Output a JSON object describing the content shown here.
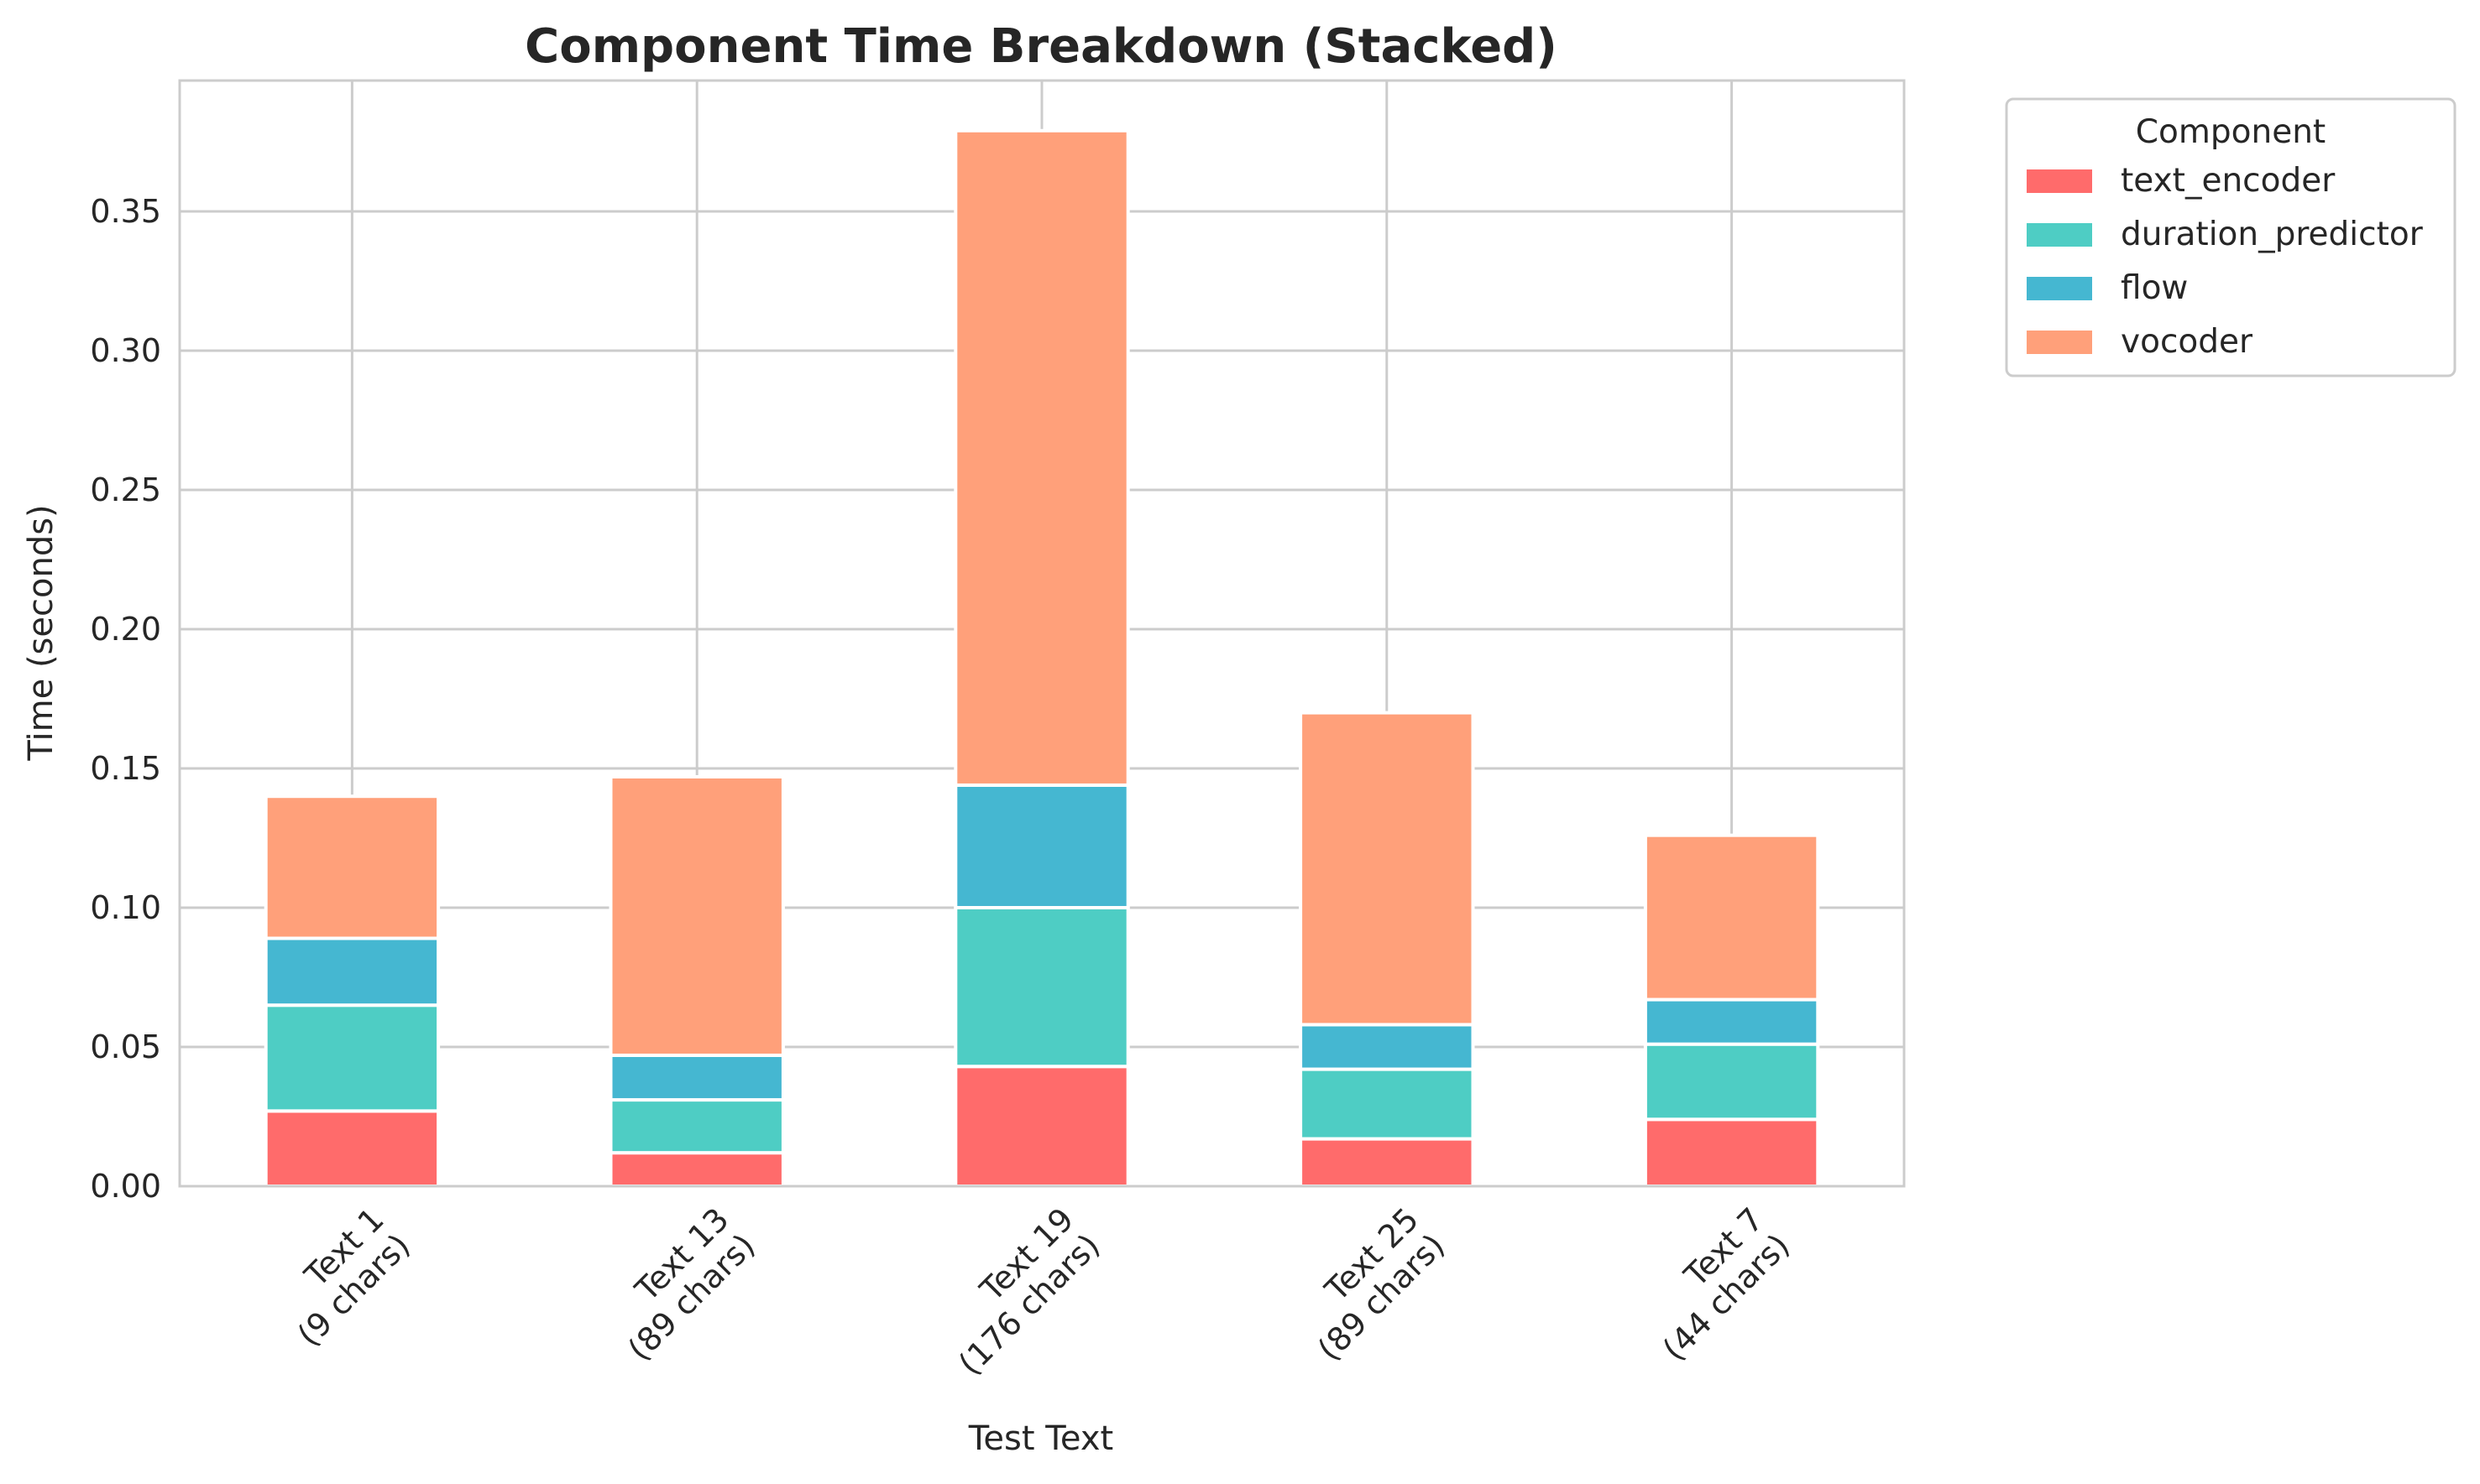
{
  "chart_data": {
    "type": "bar",
    "stacked": true,
    "title": "Component Time Breakdown (Stacked)",
    "xlabel": "Test Text",
    "ylabel": "Time (seconds)",
    "categories": [
      [
        "Text 1",
        "(9 chars)"
      ],
      [
        "Text 13",
        "(89 chars)"
      ],
      [
        "Text 19",
        "(176 chars)"
      ],
      [
        "Text 25",
        "(89 chars)"
      ],
      [
        "Text 7",
        "(44 chars)"
      ]
    ],
    "series": [
      {
        "name": "text_encoder",
        "color": "#ff6b6b",
        "values": [
          0.027,
          0.012,
          0.043,
          0.017,
          0.024
        ]
      },
      {
        "name": "duration_predictor",
        "color": "#4ecdc4",
        "values": [
          0.038,
          0.019,
          0.057,
          0.025,
          0.027
        ]
      },
      {
        "name": "flow",
        "color": "#45b7d1",
        "values": [
          0.024,
          0.016,
          0.044,
          0.016,
          0.016
        ]
      },
      {
        "name": "vocoder",
        "color": "#ffa07a",
        "values": [
          0.051,
          0.1,
          0.235,
          0.112,
          0.059
        ]
      }
    ],
    "ylim": [
      0,
      0.397
    ],
    "yticks": [
      "0.00",
      "0.05",
      "0.10",
      "0.15",
      "0.20",
      "0.25",
      "0.30",
      "0.35"
    ],
    "grid": true,
    "legend": {
      "title": "Component",
      "placement": "outside-top-right"
    }
  }
}
